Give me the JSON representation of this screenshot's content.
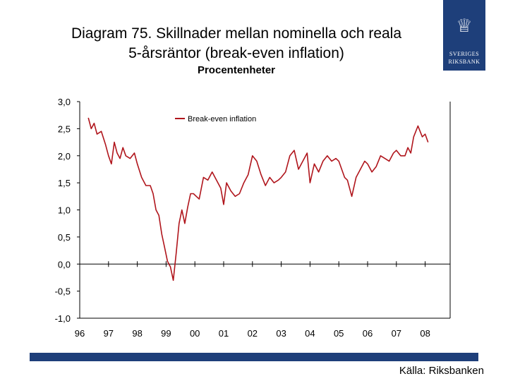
{
  "header": {
    "title_line1": "Diagram 75. Skillnader mellan nominella och reala",
    "title_line2": "5-årsräntor (break-even inflation)",
    "subtitle": "Procentenheter"
  },
  "logo": {
    "line1": "SVERIGES",
    "line2": "RIKSBANK"
  },
  "footer": {
    "source": "Källa: Riksbanken"
  },
  "colors": {
    "series": "#b0151c",
    "brand": "#1e3f7a",
    "axis": "#000000"
  },
  "chart_data": {
    "type": "line",
    "title": "Diagram 75. Skillnader mellan nominella och reala 5-årsräntor (break-even inflation)",
    "ylabel": "Procentenheter",
    "xlabel": "",
    "ylim": [
      -1.0,
      3.0
    ],
    "xlim": [
      1996.0,
      2008.5
    ],
    "ytick_values": [
      -1.0,
      -0.5,
      0.0,
      0.5,
      1.0,
      1.5,
      2.0,
      2.5,
      3.0
    ],
    "ytick_labels": [
      "-1,0",
      "-0,5",
      "0,0",
      "0,5",
      "1,0",
      "1,5",
      "2,0",
      "2,5",
      "3,0"
    ],
    "xtick_values": [
      1996,
      1997,
      1998,
      1999,
      2000,
      2001,
      2002,
      2003,
      2004,
      2005,
      2006,
      2007,
      2008
    ],
    "xtick_labels": [
      "96",
      "97",
      "98",
      "99",
      "00",
      "01",
      "02",
      "03",
      "04",
      "05",
      "06",
      "07",
      "08"
    ],
    "legend": {
      "position": "top-center",
      "entries": [
        "Break-even inflation"
      ]
    },
    "series": [
      {
        "name": "Break-even inflation",
        "x": [
          1996.3,
          1996.4,
          1996.5,
          1996.6,
          1996.75,
          1996.9,
          1997.0,
          1997.1,
          1997.2,
          1997.3,
          1997.4,
          1997.5,
          1997.6,
          1997.75,
          1997.9,
          1998.0,
          1998.15,
          1998.3,
          1998.45,
          1998.55,
          1998.65,
          1998.75,
          1998.85,
          1998.95,
          1999.05,
          1999.15,
          1999.25,
          1999.35,
          1999.45,
          1999.55,
          1999.65,
          1999.75,
          1999.85,
          1999.95,
          2000.05,
          2000.15,
          2000.3,
          2000.45,
          2000.6,
          2000.75,
          2000.9,
          2001.0,
          2001.1,
          2001.25,
          2001.4,
          2001.55,
          2001.7,
          2001.85,
          2002.0,
          2002.15,
          2002.3,
          2002.45,
          2002.6,
          2002.75,
          2002.9,
          2003.0,
          2003.15,
          2003.3,
          2003.45,
          2003.6,
          2003.75,
          2003.9,
          2004.0,
          2004.15,
          2004.3,
          2004.45,
          2004.6,
          2004.75,
          2004.9,
          2005.0,
          2005.1,
          2005.2,
          2005.3,
          2005.45,
          2005.6,
          2005.75,
          2005.9,
          2006.0,
          2006.15,
          2006.3,
          2006.45,
          2006.6,
          2006.75,
          2006.9,
          2007.0,
          2007.15,
          2007.3,
          2007.4,
          2007.5,
          2007.6,
          2007.75,
          2007.9,
          2008.0,
          2008.1
        ],
        "values": [
          2.7,
          2.5,
          2.6,
          2.4,
          2.45,
          2.2,
          2.0,
          1.85,
          2.25,
          2.05,
          1.95,
          2.15,
          2.0,
          1.95,
          2.05,
          1.85,
          1.6,
          1.45,
          1.45,
          1.3,
          1.0,
          0.9,
          0.55,
          0.3,
          0.05,
          -0.05,
          -0.3,
          0.2,
          0.75,
          1.0,
          0.75,
          1.05,
          1.3,
          1.3,
          1.25,
          1.2,
          1.6,
          1.55,
          1.7,
          1.55,
          1.4,
          1.1,
          1.5,
          1.35,
          1.25,
          1.3,
          1.5,
          1.65,
          2.0,
          1.9,
          1.65,
          1.45,
          1.6,
          1.5,
          1.55,
          1.6,
          1.7,
          2.0,
          2.1,
          1.75,
          1.9,
          2.05,
          1.5,
          1.85,
          1.7,
          1.9,
          2.0,
          1.9,
          1.95,
          1.9,
          1.75,
          1.6,
          1.55,
          1.25,
          1.6,
          1.75,
          1.9,
          1.85,
          1.7,
          1.8,
          2.0,
          1.95,
          1.9,
          2.05,
          2.1,
          2.0,
          2.0,
          2.15,
          2.05,
          2.35,
          2.55,
          2.35,
          2.4,
          2.25
        ]
      }
    ]
  }
}
